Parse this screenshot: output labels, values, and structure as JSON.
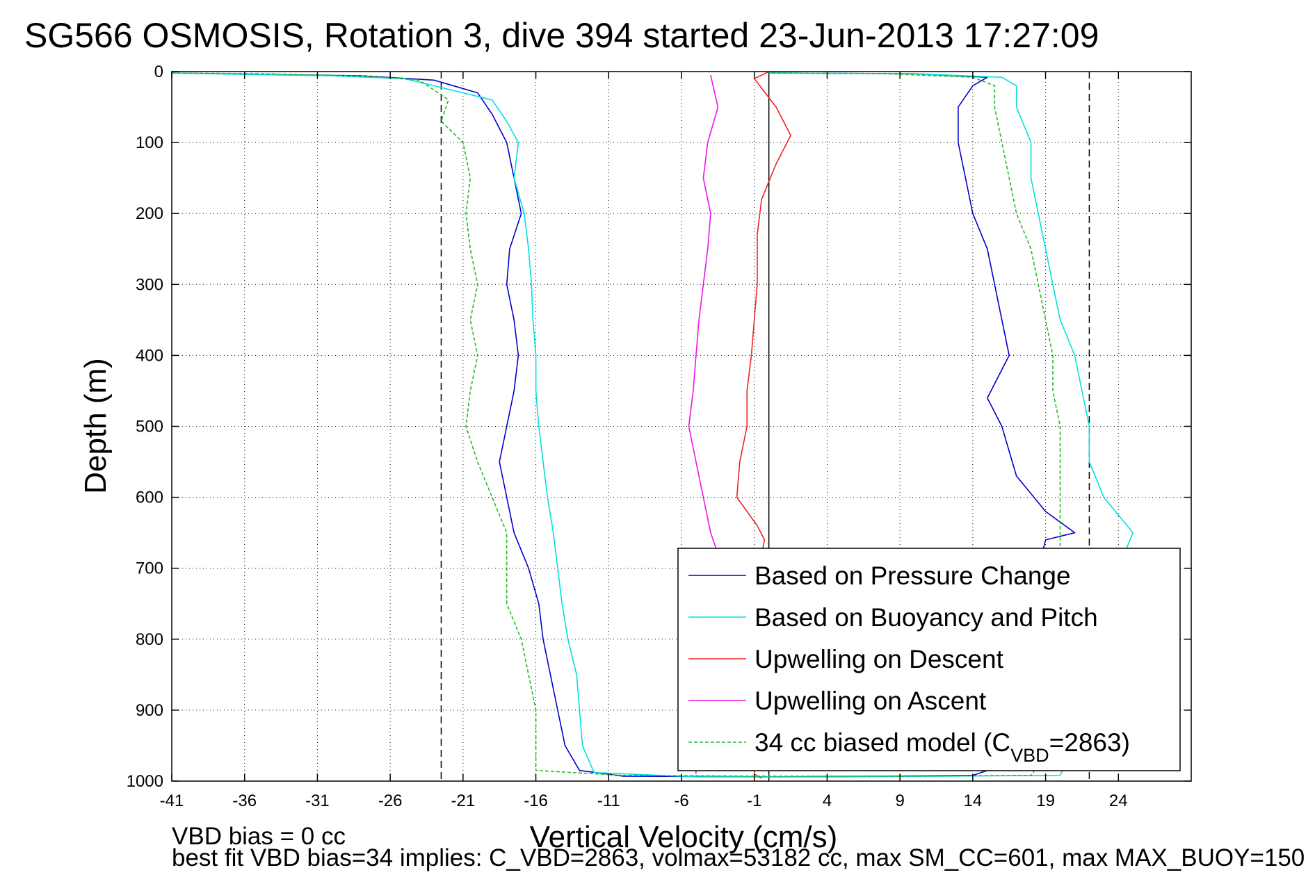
{
  "chart_data": {
    "type": "line",
    "title": "SG566 OSMOSIS, Rotation 3, dive 394 started 23-Jun-2013 17:27:09",
    "xlabel": "Vertical Velocity (cm/s)",
    "ylabel": "Depth (m)",
    "xlim": [
      -41,
      29
    ],
    "ylim": [
      0,
      1000
    ],
    "y_reversed": true,
    "grid": true,
    "x_ticks": [
      -41,
      -36,
      -31,
      -26,
      -21,
      -16,
      -11,
      -6,
      -1,
      4,
      9,
      14,
      19,
      24
    ],
    "y_ticks": [
      0,
      100,
      200,
      300,
      400,
      500,
      600,
      700,
      800,
      900,
      1000
    ],
    "x_tick_labels": [
      "-41",
      "-36",
      "-31",
      "-26",
      "-21",
      "-16",
      "-11",
      "-6",
      "-1",
      "4",
      "9",
      "14",
      "19",
      "24"
    ],
    "y_tick_labels": [
      "0",
      "100",
      "200",
      "300",
      "400",
      "500",
      "600",
      "700",
      "800",
      "900",
      "1000"
    ],
    "reference_lines": [
      {
        "x": -22.5,
        "style": "dashed",
        "color": "#000000"
      },
      {
        "x": 22,
        "style": "dashed",
        "color": "#000000"
      },
      {
        "x": 0,
        "style": "solid",
        "color": "#000000"
      }
    ],
    "legend_placement": "bottom-right",
    "series": [
      {
        "name": "Based on Pressure Change",
        "color": "#0000cc",
        "style": "solid",
        "points": [
          [
            -41,
            2
          ],
          [
            -35,
            4
          ],
          [
            -28,
            6
          ],
          [
            -23,
            12
          ],
          [
            -20,
            30
          ],
          [
            -19,
            60
          ],
          [
            -18,
            100
          ],
          [
            -17.5,
            150
          ],
          [
            -17,
            200
          ],
          [
            -17.8,
            250
          ],
          [
            -18,
            300
          ],
          [
            -17.5,
            350
          ],
          [
            -17.2,
            400
          ],
          [
            -17.5,
            450
          ],
          [
            -18,
            500
          ],
          [
            -18.5,
            550
          ],
          [
            -18,
            600
          ],
          [
            -17.5,
            650
          ],
          [
            -16.5,
            700
          ],
          [
            -15.8,
            750
          ],
          [
            -15.5,
            800
          ],
          [
            -15,
            850
          ],
          [
            -14.5,
            900
          ],
          [
            -14,
            950
          ],
          [
            -13,
            985
          ],
          [
            -10,
            993
          ],
          [
            0,
            994
          ],
          [
            8,
            993
          ],
          [
            14,
            992
          ],
          [
            15,
            985
          ],
          [
            14,
            900
          ],
          [
            15,
            800
          ],
          [
            18.5,
            700
          ],
          [
            19,
            660
          ],
          [
            21,
            650
          ],
          [
            19,
            620
          ],
          [
            17,
            570
          ],
          [
            16,
            500
          ],
          [
            15,
            460
          ],
          [
            16.5,
            400
          ],
          [
            16,
            350
          ],
          [
            15.5,
            300
          ],
          [
            15,
            250
          ],
          [
            14,
            200
          ],
          [
            13.5,
            150
          ],
          [
            13,
            100
          ],
          [
            13,
            50
          ],
          [
            14,
            20
          ],
          [
            15,
            8
          ],
          [
            10,
            3
          ],
          [
            0,
            2
          ]
        ]
      },
      {
        "name": "Based on Buoyancy and Pitch",
        "color": "#00e0e0",
        "style": "solid",
        "points": [
          [
            -41,
            2
          ],
          [
            -36,
            4
          ],
          [
            -30,
            6
          ],
          [
            -25,
            10
          ],
          [
            -19,
            40
          ],
          [
            -18,
            70
          ],
          [
            -17.2,
            100
          ],
          [
            -17.5,
            150
          ],
          [
            -16.8,
            200
          ],
          [
            -16.5,
            250
          ],
          [
            -16.3,
            300
          ],
          [
            -16.2,
            350
          ],
          [
            -16,
            400
          ],
          [
            -16,
            450
          ],
          [
            -15.8,
            500
          ],
          [
            -15.5,
            550
          ],
          [
            -15.2,
            600
          ],
          [
            -14.8,
            650
          ],
          [
            -14.5,
            700
          ],
          [
            -14.2,
            750
          ],
          [
            -13.8,
            800
          ],
          [
            -13.2,
            850
          ],
          [
            -13,
            900
          ],
          [
            -12.8,
            950
          ],
          [
            -12,
            988
          ],
          [
            -5,
            994
          ],
          [
            5,
            994
          ],
          [
            12,
            993
          ],
          [
            20,
            992
          ],
          [
            21,
            950
          ],
          [
            22,
            900
          ],
          [
            23,
            800
          ],
          [
            24,
            700
          ],
          [
            25,
            650
          ],
          [
            23,
            600
          ],
          [
            22,
            550
          ],
          [
            22,
            500
          ],
          [
            21.5,
            450
          ],
          [
            21,
            400
          ],
          [
            20,
            350
          ],
          [
            19.5,
            300
          ],
          [
            19,
            250
          ],
          [
            18.5,
            200
          ],
          [
            18,
            150
          ],
          [
            18,
            100
          ],
          [
            17,
            50
          ],
          [
            17,
            20
          ],
          [
            16,
            8
          ],
          [
            10,
            3
          ],
          [
            0,
            2
          ]
        ]
      },
      {
        "name": "Upwelling on Descent",
        "color": "#ee2222",
        "style": "solid",
        "points": [
          [
            0,
            0
          ],
          [
            -1,
            10
          ],
          [
            0.5,
            50
          ],
          [
            1.5,
            90
          ],
          [
            0.5,
            130
          ],
          [
            -0.5,
            180
          ],
          [
            -0.8,
            230
          ],
          [
            -0.8,
            300
          ],
          [
            -1,
            350
          ],
          [
            -1.2,
            400
          ],
          [
            -1.5,
            450
          ],
          [
            -1.5,
            500
          ],
          [
            -2,
            550
          ],
          [
            -2.2,
            600
          ],
          [
            -0.8,
            640
          ],
          [
            -0.3,
            660
          ],
          [
            -0.5,
            680
          ],
          [
            -1,
            990
          ],
          [
            -0.5,
            996
          ]
        ]
      },
      {
        "name": "Upwelling on Ascent",
        "color": "#ee11ee",
        "style": "solid",
        "points": [
          [
            -4,
            5
          ],
          [
            -3.5,
            50
          ],
          [
            -4.2,
            100
          ],
          [
            -4.5,
            150
          ],
          [
            -4,
            200
          ],
          [
            -4.2,
            250
          ],
          [
            -4.5,
            300
          ],
          [
            -4.8,
            350
          ],
          [
            -5,
            400
          ],
          [
            -5.2,
            450
          ],
          [
            -5.5,
            500
          ],
          [
            -5,
            550
          ],
          [
            -4.5,
            600
          ],
          [
            -4,
            650
          ],
          [
            -3.5,
            680
          ],
          [
            -5,
            800
          ],
          [
            -5,
            990
          ]
        ]
      },
      {
        "name": "34 cc biased model (C_VBD=2863)",
        "legend_label": "34 cc biased model (C",
        "legend_subscript": "VBD",
        "legend_suffix": "=2863)",
        "color": "#22bb22",
        "style": "dashed",
        "points": [
          [
            -41,
            2
          ],
          [
            -35,
            3
          ],
          [
            -28,
            6
          ],
          [
            -24,
            12
          ],
          [
            -22,
            40
          ],
          [
            -22.5,
            70
          ],
          [
            -21,
            100
          ],
          [
            -20.5,
            150
          ],
          [
            -20.8,
            200
          ],
          [
            -20.5,
            250
          ],
          [
            -20,
            300
          ],
          [
            -20.5,
            350
          ],
          [
            -20,
            400
          ],
          [
            -20.5,
            450
          ],
          [
            -20.8,
            500
          ],
          [
            -20,
            550
          ],
          [
            -19,
            600
          ],
          [
            -18,
            650
          ],
          [
            -18,
            700
          ],
          [
            -18,
            750
          ],
          [
            -17,
            800
          ],
          [
            -16.5,
            850
          ],
          [
            -16,
            900
          ],
          [
            -16,
            950
          ],
          [
            -16,
            985
          ],
          [
            -10,
            992
          ],
          [
            0,
            993
          ],
          [
            10,
            993
          ],
          [
            18,
            992
          ],
          [
            19.5,
            950
          ],
          [
            20,
            900
          ],
          [
            20,
            800
          ],
          [
            20,
            700
          ],
          [
            20,
            650
          ],
          [
            20,
            600
          ],
          [
            20,
            550
          ],
          [
            20,
            500
          ],
          [
            19.5,
            450
          ],
          [
            19.5,
            400
          ],
          [
            19,
            350
          ],
          [
            18.5,
            300
          ],
          [
            18,
            250
          ],
          [
            17,
            200
          ],
          [
            16.5,
            150
          ],
          [
            16,
            100
          ],
          [
            15.5,
            50
          ],
          [
            15.5,
            20
          ],
          [
            14,
            8
          ],
          [
            8,
            3
          ],
          [
            0,
            2
          ]
        ]
      }
    ]
  },
  "footer": {
    "line1": "VBD bias = 0 cc",
    "line2": "best fit VBD bias=34 implies: C_VBD=2863, volmax=53182 cc, max SM_CC=601, max MAX_BUOY=150"
  }
}
